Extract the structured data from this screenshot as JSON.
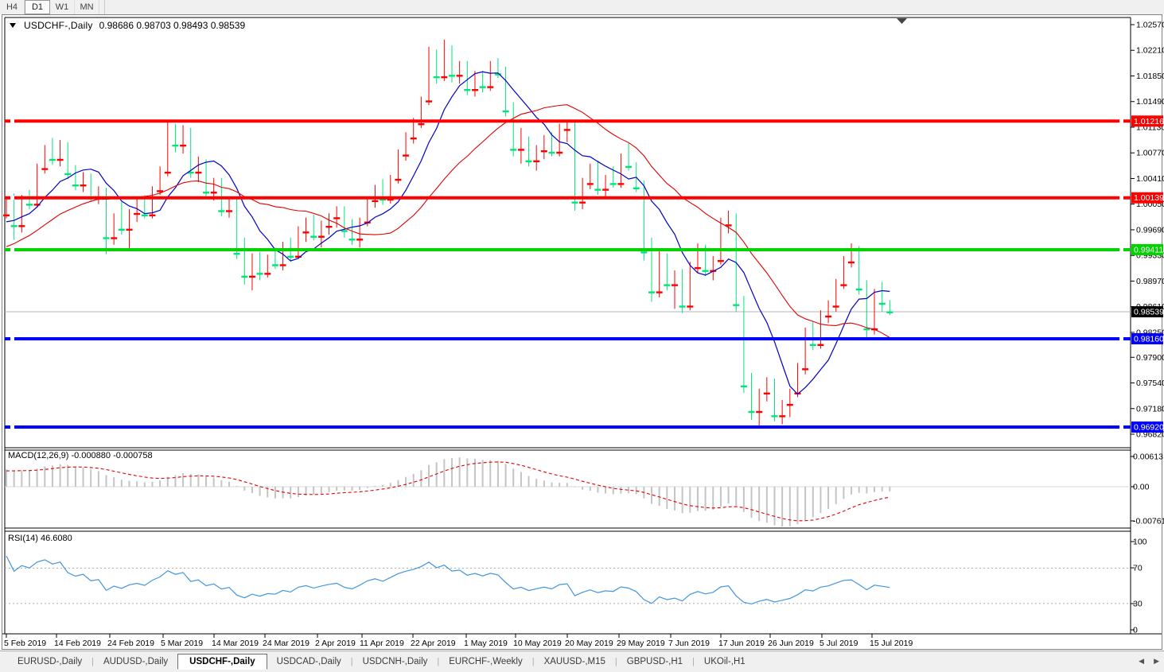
{
  "toolbar": {
    "timeframes": [
      {
        "label": "H4",
        "active": false
      },
      {
        "label": "D1",
        "active": true
      },
      {
        "label": "W1",
        "active": false
      },
      {
        "label": "MN",
        "active": false
      }
    ]
  },
  "chart": {
    "title": "USDCHF-,Daily",
    "ohlc": "0.98686 0.98703 0.98493 0.98539",
    "dropdown_icon": "triangle-down-icon"
  },
  "chart_data": {
    "type": "candlestick",
    "title": "USDCHF-,Daily",
    "price_axis_ticks": [
      "1.02570",
      "1.02210",
      "1.01850",
      "1.01490",
      "1.01130",
      "1.00770",
      "1.00410",
      "1.00050",
      "0.99690",
      "0.99330",
      "0.98970",
      "0.98610",
      "0.98250",
      "0.97900",
      "0.97540",
      "0.97180",
      "0.96820"
    ],
    "date_labels": [
      [
        "5 Feb 2019",
        5
      ],
      [
        "14 Feb 2019",
        68
      ],
      [
        "24 Feb 2019",
        135
      ],
      [
        "5 Mar 2019",
        202
      ],
      [
        "14 Mar 2019",
        266
      ],
      [
        "24 Mar 2019",
        330
      ],
      [
        "2 Apr 2019",
        396
      ],
      [
        "11 Apr 2019",
        452
      ],
      [
        "22 Apr 2019",
        516
      ],
      [
        "1 May 2019",
        583
      ],
      [
        "10 May 2019",
        645
      ],
      [
        "20 May 2019",
        710
      ],
      [
        "29 May 2019",
        775
      ],
      [
        "7 Jun 2019",
        840
      ],
      [
        "17 Jun 2019",
        903
      ],
      [
        "26 Jun 2019",
        965
      ],
      [
        "5 Jul 2019",
        1030
      ],
      [
        "15 Jul 2019",
        1093
      ]
    ],
    "hlines": [
      {
        "price": 1.01216,
        "label": "1.01216",
        "color": "#FF0000"
      },
      {
        "price": 1.00139,
        "label": "1.00139",
        "color": "#FF0000"
      },
      {
        "price": 0.99411,
        "label": "0.99411",
        "color": "#00D300"
      },
      {
        "price": 0.9816,
        "label": "0.98160",
        "color": "#0000FF"
      },
      {
        "price": 0.9692,
        "label": "0.96920",
        "color": "#0000FF"
      }
    ],
    "current_price": {
      "value": 0.98539,
      "label": "0.98539"
    },
    "colors": {
      "bull_candle": "#FF0000",
      "bear_candle": "#00E57A",
      "ma_fast": "#0000C8",
      "ma_slow": "#E00000",
      "macd_histogram": "#C4C4C4",
      "macd_signal": "#E00000",
      "rsi_line": "#4396DE",
      "current_price_line": "#B4B4B4"
    },
    "ma_fast_period": 8,
    "ma_slow_period": 21,
    "warmup_closes": [
      0.983,
      0.9842,
      0.9838,
      0.9855,
      0.9868,
      0.9862,
      0.988,
      0.9892,
      0.9886,
      0.9905,
      0.9918,
      0.9912,
      0.9928,
      0.994,
      0.9934,
      0.9948,
      0.9942,
      0.9955,
      0.9966,
      0.996,
      0.9972,
      0.9968,
      0.998,
      0.9976,
      0.9986,
      0.999
    ],
    "candles": [
      [
        0.999,
        1.0015,
        0.9985,
        1.001
      ],
      [
        1.001,
        1.002,
        0.9955,
        0.9975
      ],
      [
        0.9975,
        1.0018,
        0.9965,
        1.0012
      ],
      [
        1.0012,
        1.0025,
        0.9998,
        1.0005
      ],
      [
        1.0005,
        1.0062,
        1.0,
        1.0055
      ],
      [
        1.0055,
        1.0088,
        1.0048,
        1.0082
      ],
      [
        1.0082,
        1.0098,
        1.006,
        1.0068
      ],
      [
        1.0068,
        1.0095,
        1.0058,
        1.0088
      ],
      [
        1.0088,
        1.0092,
        1.004,
        1.0048
      ],
      [
        1.0048,
        1.006,
        1.0025,
        1.0032
      ],
      [
        1.0032,
        1.005,
        1.0022,
        1.0045
      ],
      [
        1.0045,
        1.0048,
        1.0008,
        1.0015
      ],
      [
        1.0015,
        1.003,
        1.0005,
        1.0022
      ],
      [
        1.0022,
        1.0028,
        0.9935,
        0.9958
      ],
      [
        0.9958,
        0.9992,
        0.9948,
        0.9985
      ],
      [
        0.9985,
        1.0008,
        0.9962,
        0.997
      ],
      [
        0.997,
        0.9998,
        0.994,
        0.9992
      ],
      [
        0.9992,
        1.0012,
        0.998,
        1.0002
      ],
      [
        1.0002,
        1.0018,
        0.9985,
        0.999
      ],
      [
        0.999,
        1.003,
        0.9985,
        1.0024
      ],
      [
        1.0024,
        1.0058,
        1.0018,
        1.005
      ],
      [
        1.005,
        1.0122,
        1.0044,
        1.0108
      ],
      [
        1.0108,
        1.0118,
        1.0078,
        1.0088
      ],
      [
        1.0088,
        1.0116,
        1.0076,
        1.0106
      ],
      [
        1.0106,
        1.0112,
        1.0042,
        1.005
      ],
      [
        1.005,
        1.0072,
        1.0036,
        1.0064
      ],
      [
        1.0064,
        1.0068,
        1.0016,
        1.0022
      ],
      [
        1.0022,
        1.0042,
        1.001,
        1.0036
      ],
      [
        1.0036,
        1.0042,
        0.9988,
        0.9996
      ],
      [
        0.9996,
        1.0016,
        0.9986,
        1.0008
      ],
      [
        1.0008,
        1.0012,
        0.9928,
        0.9936
      ],
      [
        0.9936,
        0.9958,
        0.9892,
        0.9904
      ],
      [
        0.9904,
        0.9936,
        0.9884,
        0.993
      ],
      [
        0.993,
        0.9938,
        0.9898,
        0.9908
      ],
      [
        0.9908,
        0.9934,
        0.9902,
        0.9926
      ],
      [
        0.9926,
        0.9944,
        0.9914,
        0.992
      ],
      [
        0.992,
        0.9952,
        0.9912,
        0.9946
      ],
      [
        0.9946,
        0.9958,
        0.9924,
        0.9932
      ],
      [
        0.9932,
        0.9974,
        0.9928,
        0.9966
      ],
      [
        0.9966,
        0.9986,
        0.9952,
        0.9978
      ],
      [
        0.9978,
        0.999,
        0.9954,
        0.996
      ],
      [
        0.996,
        0.9982,
        0.9944,
        0.9974
      ],
      [
        0.9974,
        0.9992,
        0.9962,
        0.9986
      ],
      [
        0.9986,
        1.0002,
        0.9972,
        0.9994
      ],
      [
        0.9994,
        1.0002,
        0.9958,
        0.9968
      ],
      [
        0.9968,
        0.9984,
        0.9948,
        0.9956
      ],
      [
        0.9956,
        0.9986,
        0.9944,
        0.998
      ],
      [
        0.998,
        1.0016,
        0.9974,
        1.001
      ],
      [
        1.001,
        1.0032,
        1.0,
        1.0026
      ],
      [
        1.0026,
        1.004,
        1.0004,
        1.0012
      ],
      [
        1.0012,
        1.0046,
        1.0006,
        1.004
      ],
      [
        1.004,
        1.0082,
        1.0034,
        1.0074
      ],
      [
        1.0074,
        1.0106,
        1.0066,
        1.0098
      ],
      [
        1.0098,
        1.0126,
        1.009,
        1.0118
      ],
      [
        1.0118,
        1.0156,
        1.0112,
        1.015
      ],
      [
        1.015,
        1.0226,
        1.0144,
        1.0214
      ],
      [
        1.0214,
        1.0222,
        1.0174,
        1.0184
      ],
      [
        1.0184,
        1.0236,
        1.0178,
        1.0222
      ],
      [
        1.0222,
        1.0228,
        1.0176,
        1.0186
      ],
      [
        1.0186,
        1.0206,
        1.0174,
        1.0198
      ],
      [
        1.0198,
        1.0206,
        1.0158,
        1.0166
      ],
      [
        1.0166,
        1.0192,
        1.0156,
        1.0186
      ],
      [
        1.0186,
        1.0192,
        1.0162,
        1.017
      ],
      [
        1.017,
        1.0206,
        1.0164,
        1.0198
      ],
      [
        1.0198,
        1.021,
        1.0182,
        1.0188
      ],
      [
        1.0188,
        1.0198,
        1.0128,
        1.0136
      ],
      [
        1.0136,
        1.0148,
        1.0072,
        1.0082
      ],
      [
        1.0082,
        1.0112,
        1.0062,
        1.0096
      ],
      [
        1.0096,
        1.01,
        1.0058,
        1.0066
      ],
      [
        1.0066,
        1.0088,
        1.0052,
        1.008
      ],
      [
        1.008,
        1.0102,
        1.0068,
        1.0092
      ],
      [
        1.0092,
        1.0106,
        1.0072,
        1.0078
      ],
      [
        1.0078,
        1.0118,
        1.0072,
        1.011
      ],
      [
        1.011,
        1.0122,
        1.0092,
        1.0116
      ],
      [
        1.0116,
        1.012,
        0.9996,
        1.0008
      ],
      [
        1.0008,
        1.0042,
        0.9998,
        1.0034
      ],
      [
        1.0034,
        1.0062,
        1.0026,
        1.0054
      ],
      [
        1.0054,
        1.0066,
        1.0018,
        1.0026
      ],
      [
        1.0026,
        1.0046,
        1.0014,
        1.004
      ],
      [
        1.004,
        1.0058,
        1.0028,
        1.0034
      ],
      [
        1.0034,
        1.0076,
        1.0028,
        1.0068
      ],
      [
        1.0068,
        1.0092,
        1.0052,
        1.0058
      ],
      [
        1.0058,
        1.0064,
        1.0022,
        1.0028
      ],
      [
        1.0028,
        1.0038,
        0.9926,
        0.9938
      ],
      [
        0.9938,
        0.9958,
        0.9868,
        0.9882
      ],
      [
        0.9882,
        0.994,
        0.9874,
        0.9932
      ],
      [
        0.9932,
        0.9936,
        0.9884,
        0.9892
      ],
      [
        0.9892,
        0.9912,
        0.9858,
        0.9904
      ],
      [
        0.9904,
        0.9914,
        0.9852,
        0.9862
      ],
      [
        0.9862,
        0.9924,
        0.9856,
        0.9916
      ],
      [
        0.9916,
        0.995,
        0.9908,
        0.9942
      ],
      [
        0.9942,
        0.9948,
        0.9904,
        0.9912
      ],
      [
        0.9912,
        0.9932,
        0.9898,
        0.9926
      ],
      [
        0.9926,
        0.9986,
        0.992,
        0.9976
      ],
      [
        0.9976,
        0.9996,
        0.9964,
        0.9986
      ],
      [
        0.9986,
        0.9992,
        0.9854,
        0.9864
      ],
      [
        0.9864,
        0.9876,
        0.974,
        0.975
      ],
      [
        0.975,
        0.9768,
        0.9702,
        0.9714
      ],
      [
        0.9714,
        0.9746,
        0.9692,
        0.974
      ],
      [
        0.974,
        0.9762,
        0.9728,
        0.9756
      ],
      [
        0.9756,
        0.976,
        0.97,
        0.9708
      ],
      [
        0.9708,
        0.973,
        0.9696,
        0.9724
      ],
      [
        0.9724,
        0.9746,
        0.9706,
        0.974
      ],
      [
        0.974,
        0.9782,
        0.9734,
        0.9774
      ],
      [
        0.9774,
        0.9832,
        0.9766,
        0.9824
      ],
      [
        0.9824,
        0.984,
        0.98,
        0.9808
      ],
      [
        0.9808,
        0.9856,
        0.9802,
        0.9848
      ],
      [
        0.9848,
        0.987,
        0.9838,
        0.9862
      ],
      [
        0.9862,
        0.99,
        0.9854,
        0.9892
      ],
      [
        0.9892,
        0.9932,
        0.9886,
        0.9924
      ],
      [
        0.9924,
        0.995,
        0.9916,
        0.993
      ],
      [
        0.993,
        0.9946,
        0.9878,
        0.9886
      ],
      [
        0.9886,
        0.9898,
        0.9817,
        0.983
      ],
      [
        0.983,
        0.9886,
        0.9822,
        0.9878
      ],
      [
        0.9878,
        0.9896,
        0.9854,
        0.9866
      ],
      [
        0.98686,
        0.98703,
        0.98493,
        0.98539
      ]
    ],
    "macd": {
      "label": "MACD(12,26,9) -0.000880 -0.000758",
      "params": "12,26,9",
      "axis_labels": [
        "0.00613",
        "0.00",
        "-0.007612"
      ]
    },
    "rsi": {
      "label": "RSI(14) 46.6080",
      "period": 14,
      "axis_labels": [
        "100",
        "70",
        "30",
        "0"
      ],
      "levels": [
        70,
        30
      ]
    }
  },
  "tabs": {
    "items": [
      {
        "label": "EURUSD-,Daily",
        "active": false
      },
      {
        "label": "AUDUSD-,Daily",
        "active": false
      },
      {
        "label": "USDCHF-,Daily",
        "active": true
      },
      {
        "label": "USDCAD-,Daily",
        "active": false
      },
      {
        "label": "USDCNH-,Daily",
        "active": false
      },
      {
        "label": "EURCHF-,Weekly",
        "active": false
      },
      {
        "label": "XAUUSD-,M15",
        "active": false
      },
      {
        "label": "GBPUSD-,H1",
        "active": false
      },
      {
        "label": "UKOil-,H1",
        "active": false
      }
    ],
    "scroll_left_icon": "triangle-left-icon",
    "scroll_right_icon": "triangle-right-icon"
  }
}
